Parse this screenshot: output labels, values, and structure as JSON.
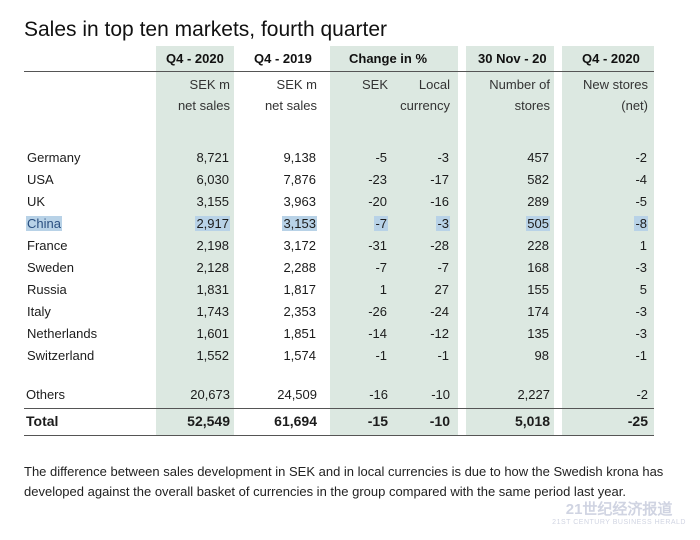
{
  "title": "Sales in top ten markets, fourth quarter",
  "columns": {
    "q4_2020": "Q4 - 2020",
    "q4_2019": "Q4 - 2019",
    "change": "Change in %",
    "nov": "30 Nov - 20",
    "new_q4": "Q4 - 2020"
  },
  "subheads": {
    "q4_2020": [
      "SEK m",
      "net sales"
    ],
    "q4_2019": [
      "SEK m",
      "net sales"
    ],
    "sek": [
      "SEK",
      ""
    ],
    "local": [
      "Local",
      "currency"
    ],
    "stores": [
      "Number of",
      "stores"
    ],
    "new": [
      "New stores",
      "(net)"
    ]
  },
  "rows": [
    {
      "market": "Germany",
      "s2020": "8,721",
      "s2019": "9,138",
      "sek": "-5",
      "local": "-3",
      "stores": "457",
      "new": "-2"
    },
    {
      "market": "USA",
      "s2020": "6,030",
      "s2019": "7,876",
      "sek": "-23",
      "local": "-17",
      "stores": "582",
      "new": "-4"
    },
    {
      "market": "UK",
      "s2020": "3,155",
      "s2019": "3,963",
      "sek": "-20",
      "local": "-16",
      "stores": "289",
      "new": "-5"
    },
    {
      "market": "China",
      "s2020": "2,917",
      "s2019": "3,153",
      "sek": "-7",
      "local": "-3",
      "stores": "505",
      "new": "-8"
    },
    {
      "market": "France",
      "s2020": "2,198",
      "s2019": "3,172",
      "sek": "-31",
      "local": "-28",
      "stores": "228",
      "new": "1"
    },
    {
      "market": "Sweden",
      "s2020": "2,128",
      "s2019": "2,288",
      "sek": "-7",
      "local": "-7",
      "stores": "168",
      "new": "-3"
    },
    {
      "market": "Russia",
      "s2020": "1,831",
      "s2019": "1,817",
      "sek": "1",
      "local": "27",
      "stores": "155",
      "new": "5"
    },
    {
      "market": "Italy",
      "s2020": "1,743",
      "s2019": "2,353",
      "sek": "-26",
      "local": "-24",
      "stores": "174",
      "new": "-3"
    },
    {
      "market": "Netherlands",
      "s2020": "1,601",
      "s2019": "1,851",
      "sek": "-14",
      "local": "-12",
      "stores": "135",
      "new": "-3"
    },
    {
      "market": "Switzerland",
      "s2020": "1,552",
      "s2019": "1,574",
      "sek": "-1",
      "local": "-1",
      "stores": "98",
      "new": "-1"
    }
  ],
  "others": {
    "market": "Others",
    "s2020": "20,673",
    "s2019": "24,509",
    "sek": "-16",
    "local": "-10",
    "stores": "2,227",
    "new": "-2"
  },
  "total": {
    "market": "Total",
    "s2020": "52,549",
    "s2019": "61,694",
    "sek": "-15",
    "local": "-10",
    "stores": "5,018",
    "new": "-25"
  },
  "footnote": "The difference between sales development in SEK and in local currencies is due to how the Swedish krona has developed against the overall basket of currencies in the group compared with the same period last year.",
  "watermark": {
    "cn": "21世纪经济报道",
    "en": "21ST CENTURY BUSINESS HERALD"
  },
  "colors": {
    "shade": "#dce8e1",
    "highlight": "#b8d2e7"
  }
}
